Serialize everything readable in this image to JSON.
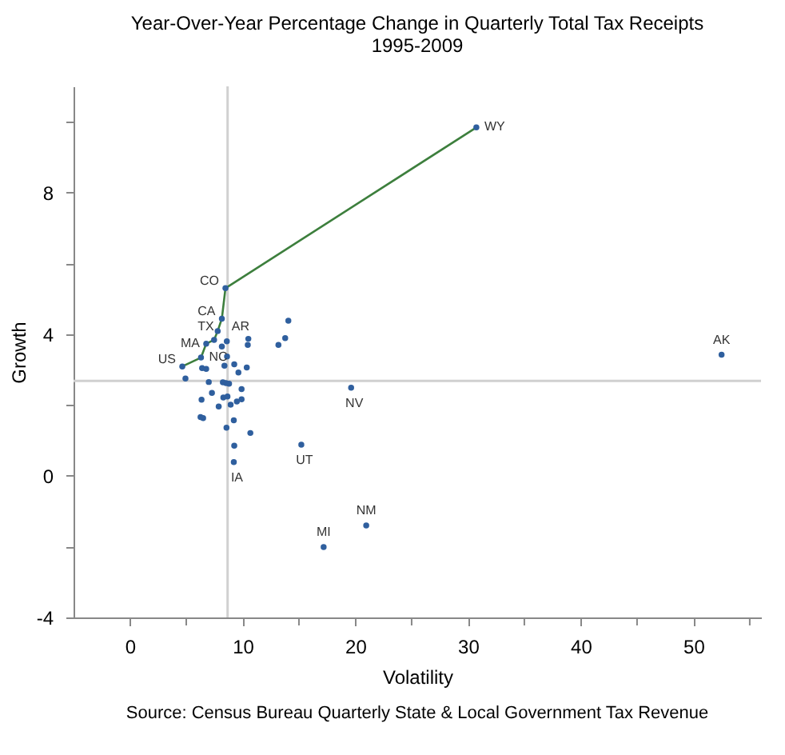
{
  "chart_data": {
    "type": "scatter",
    "title": "Year-Over-Year Percentage Change in Quarterly Total Tax Receipts",
    "subtitle": "1995-2009",
    "xlabel": "Volatility",
    "ylabel": "Growth",
    "xlim": [
      -5,
      56
    ],
    "xticks": [
      0,
      {
        "value": 5,
        "label": null
      },
      10,
      {
        "value": 15,
        "label": null
      },
      20,
      {
        "value": 25,
        "label": null
      },
      30,
      {
        "value": 35,
        "label": null
      },
      40,
      {
        "value": 45,
        "label": null
      },
      50,
      {
        "value": 55,
        "label": null
      }
    ],
    "ylim": [
      -4,
      11
    ],
    "yticks": [
      -4,
      {
        "value": -2,
        "label": null
      },
      0,
      {
        "value": 2,
        "label": null
      },
      4,
      {
        "value": 6,
        "label": null
      },
      8,
      {
        "value": 10,
        "label": null
      }
    ],
    "grid": false,
    "series": [
      {
        "type": "scatter",
        "color": "#2f5f9e",
        "marker": "circle",
        "x": [
          4.65,
          6.31,
          6.77,
          7.47,
          7.79,
          8.16,
          8.48,
          30.74,
          8.6,
          8.16,
          8.62,
          8.39,
          9.26,
          9.63,
          10.37,
          6.41,
          6.77,
          4.93,
          7.0,
          8.25,
          8.53,
          8.8,
          9.91,
          7.28,
          6.36,
          8.29,
          8.66,
          9.91,
          9.49,
          8.94,
          7.88,
          6.27,
          6.5,
          9.22,
          8.57,
          10.69,
          9.26,
          9.22,
          10.51,
          10.46,
          13.18,
          13.78,
          14.06,
          19.63,
          15.21,
          20.97,
          17.19,
          52.5
        ],
        "values": [
          3.09,
          3.34,
          3.73,
          3.84,
          4.09,
          4.44,
          5.3,
          9.84,
          3.8,
          3.65,
          3.37,
          3.11,
          3.15,
          2.92,
          3.06,
          3.04,
          3.02,
          2.75,
          2.65,
          2.64,
          2.62,
          2.6,
          2.45,
          2.34,
          2.15,
          2.21,
          2.24,
          2.16,
          2.1,
          2.01,
          1.96,
          1.66,
          1.63,
          1.57,
          1.36,
          1.21,
          0.85,
          0.39,
          3.87,
          3.7,
          3.7,
          3.89,
          4.38,
          2.49,
          0.88,
          -1.4,
          -2.01,
          3.42
        ]
      },
      {
        "type": "line",
        "color": "#3d7f3d",
        "marker": "none",
        "line_style": "solid",
        "x": [
          4.65,
          6.31,
          6.77,
          7.47,
          7.79,
          8.16,
          8.48,
          30.74
        ],
        "values": [
          3.09,
          3.34,
          3.73,
          3.84,
          4.09,
          4.44,
          5.3,
          9.84
        ]
      }
    ],
    "ref_lines": [
      {
        "axis": "x",
        "value": 8.67,
        "color": "#d0d0d0"
      },
      {
        "axis": "y",
        "value": 2.68,
        "color": "#d0d0d0"
      }
    ],
    "annotations": [
      {
        "text": "WY",
        "x": 30.74,
        "y": 9.84
      },
      {
        "text": "CO",
        "x": 8.48,
        "y": 5.3
      },
      {
        "text": "CA",
        "x": 8.16,
        "y": 4.44
      },
      {
        "text": "TX",
        "x": 7.47,
        "y": 3.84
      },
      {
        "text": "AR",
        "x": 8.6,
        "y": 3.8
      },
      {
        "text": "MA",
        "x": 6.77,
        "y": 3.73
      },
      {
        "text": "NC",
        "x": 6.31,
        "y": 3.34
      },
      {
        "text": "US",
        "x": 4.65,
        "y": 3.09
      },
      {
        "text": "AK",
        "x": 52.5,
        "y": 3.42
      },
      {
        "text": "NV",
        "x": 19.63,
        "y": 2.49
      },
      {
        "text": "UT",
        "x": 15.21,
        "y": 0.88
      },
      {
        "text": "IA",
        "x": 9.22,
        "y": 0.39
      },
      {
        "text": "NM",
        "x": 20.97,
        "y": -1.4
      },
      {
        "text": "MI",
        "x": 17.19,
        "y": -2.01
      },
      "Source: Census Bureau Quarterly State & Local Government Tax Revenue"
    ]
  }
}
